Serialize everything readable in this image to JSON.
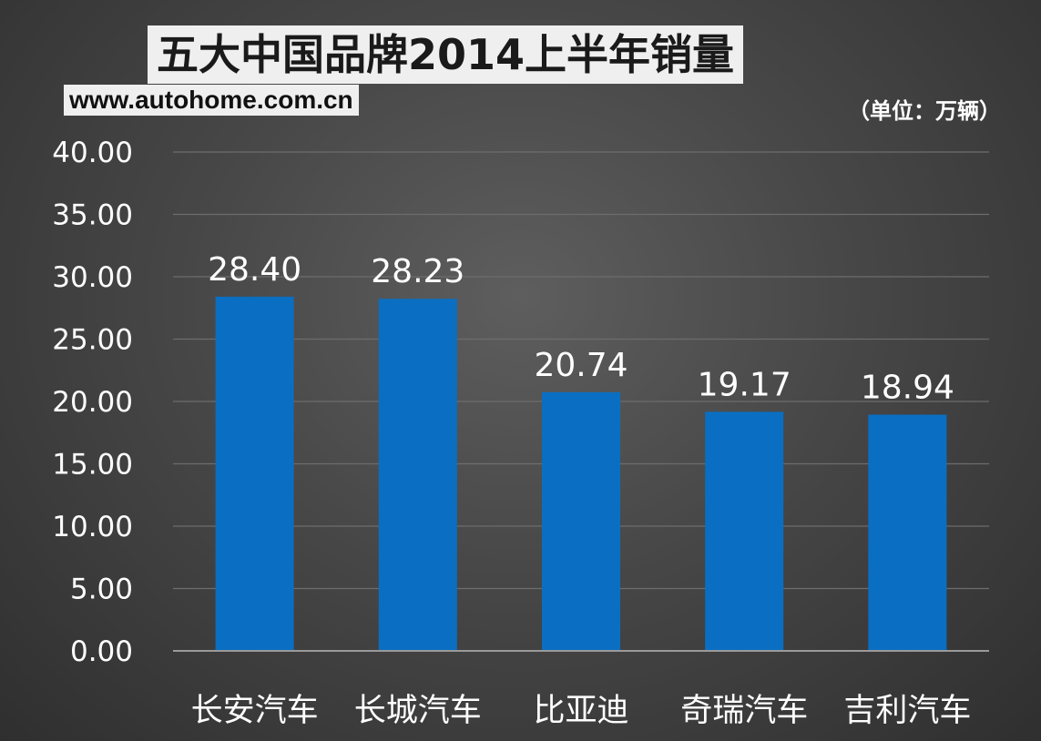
{
  "header": {
    "title": "五大中国品牌2014上半年销量",
    "website": "www.autohome.com.cn",
    "unit": "（单位：万辆）"
  },
  "colors": {
    "bar": "#0a6fc2",
    "gridline": "#6d6d6d",
    "axis": "#9a9a9a"
  },
  "chart_data": {
    "type": "bar",
    "title": "五大中国品牌2014上半年销量",
    "xlabel": "",
    "ylabel": "",
    "unit": "（单位：万辆）",
    "categories": [
      "长安汽车",
      "长城汽车",
      "比亚迪",
      "奇瑞汽车",
      "吉利汽车"
    ],
    "values": [
      28.4,
      28.23,
      20.74,
      19.17,
      18.94
    ],
    "value_labels": [
      "28.40",
      "28.23",
      "20.74",
      "19.17",
      "18.94"
    ],
    "ylim": [
      0,
      40
    ],
    "yticks": [
      0,
      5,
      10,
      15,
      20,
      25,
      30,
      35,
      40
    ],
    "ytick_labels": [
      "0.00",
      "5.00",
      "10.00",
      "15.00",
      "20.00",
      "25.00",
      "30.00",
      "35.00",
      "40.00"
    ],
    "grid": true,
    "legend": "none"
  }
}
